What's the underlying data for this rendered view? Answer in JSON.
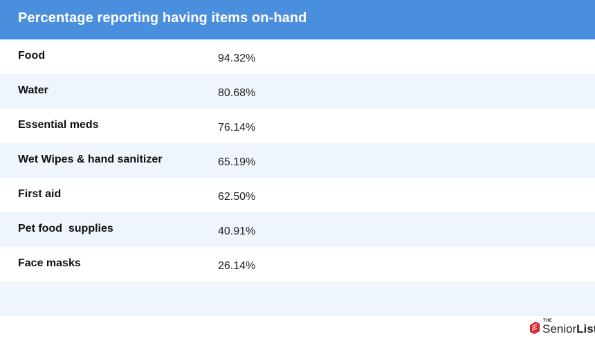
{
  "header": {
    "title": "Percentage reporting having items on-hand"
  },
  "chart_data": {
    "type": "table",
    "title": "Percentage reporting having items on-hand",
    "rows": [
      {
        "label": "Food",
        "value": "94.32%"
      },
      {
        "label": "Water",
        "value": "80.68%"
      },
      {
        "label": "Essential meds",
        "value": "76.14%"
      },
      {
        "label": "Wet Wipes & hand sanitizer",
        "value": "65.19%"
      },
      {
        "label": "First aid",
        "value": "62.50%"
      },
      {
        "label": "Pet food  supplies",
        "value": "40.91%"
      },
      {
        "label": "Face masks",
        "value": "26.14%"
      }
    ]
  },
  "logo": {
    "the": "THE",
    "word_regular": "Senior",
    "word_bold": "List"
  },
  "colors": {
    "header_bg": "#4a8ede",
    "row_alt_bg": "#eef5fd",
    "logo_accent": "#d9262f"
  }
}
